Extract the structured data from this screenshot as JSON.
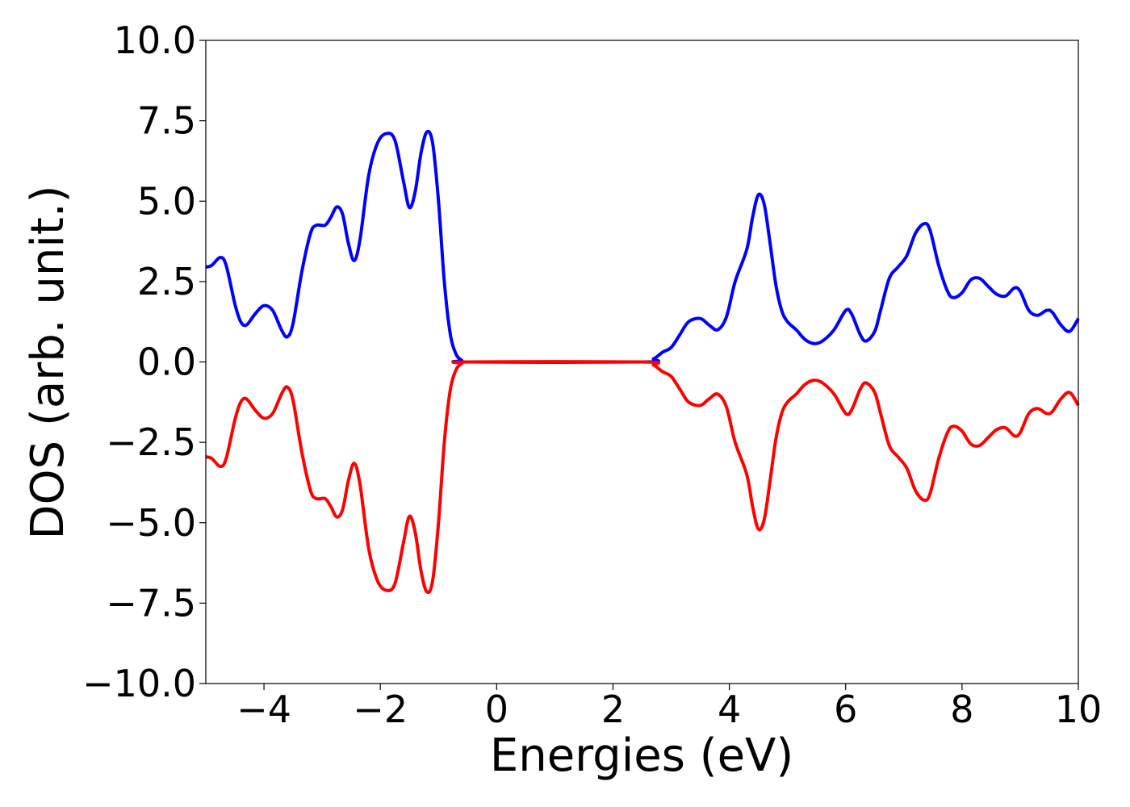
{
  "chart_data": {
    "type": "line",
    "xlabel": "Energies (eV)",
    "ylabel": "DOS (arb. unit.)",
    "xlim": [
      -5,
      10
    ],
    "ylim": [
      -10,
      10
    ],
    "grid": false,
    "x_ticks": [
      -4,
      -2,
      0,
      2,
      4,
      6,
      8,
      10
    ],
    "x_tick_labels": [
      "−4",
      "−2",
      "0",
      "2",
      "4",
      "6",
      "8",
      "10"
    ],
    "y_ticks": [
      10,
      7.5,
      5,
      2.5,
      0,
      -2.5,
      -5,
      -7.5,
      -10
    ],
    "y_tick_labels": [
      "10.0",
      "7.5",
      "5.0",
      "2.5",
      "0.0",
      "−2.5",
      "−5.0",
      "−7.5",
      "−10.0"
    ],
    "series": [
      {
        "color": "#0000ff",
        "points": [
          [
            -5.0,
            2.95
          ],
          [
            -4.9,
            3.0
          ],
          [
            -4.75,
            3.25
          ],
          [
            -4.65,
            3.0
          ],
          [
            -4.5,
            1.8
          ],
          [
            -4.4,
            1.25
          ],
          [
            -4.3,
            1.15
          ],
          [
            -4.15,
            1.5
          ],
          [
            -4.0,
            1.75
          ],
          [
            -3.85,
            1.6
          ],
          [
            -3.7,
            1.0
          ],
          [
            -3.6,
            0.78
          ],
          [
            -3.5,
            1.2
          ],
          [
            -3.35,
            2.8
          ],
          [
            -3.2,
            4.0
          ],
          [
            -3.1,
            4.25
          ],
          [
            -2.95,
            4.25
          ],
          [
            -2.85,
            4.5
          ],
          [
            -2.75,
            4.82
          ],
          [
            -2.65,
            4.6
          ],
          [
            -2.55,
            3.7
          ],
          [
            -2.45,
            3.15
          ],
          [
            -2.35,
            3.8
          ],
          [
            -2.2,
            5.8
          ],
          [
            -2.05,
            6.8
          ],
          [
            -1.9,
            7.1
          ],
          [
            -1.75,
            6.9
          ],
          [
            -1.6,
            5.6
          ],
          [
            -1.5,
            4.8
          ],
          [
            -1.4,
            5.3
          ],
          [
            -1.3,
            6.5
          ],
          [
            -1.2,
            7.15
          ],
          [
            -1.1,
            6.8
          ],
          [
            -1.0,
            5.0
          ],
          [
            -0.9,
            2.5
          ],
          [
            -0.8,
            0.9
          ],
          [
            -0.7,
            0.25
          ],
          [
            -0.6,
            0.05
          ],
          [
            -0.5,
            0.0
          ],
          [
            2.5,
            0.0
          ],
          [
            2.7,
            0.1
          ],
          [
            2.85,
            0.3
          ],
          [
            3.0,
            0.45
          ],
          [
            3.15,
            0.85
          ],
          [
            3.3,
            1.25
          ],
          [
            3.5,
            1.35
          ],
          [
            3.65,
            1.15
          ],
          [
            3.8,
            1.0
          ],
          [
            3.95,
            1.4
          ],
          [
            4.1,
            2.5
          ],
          [
            4.3,
            3.5
          ],
          [
            4.4,
            4.5
          ],
          [
            4.5,
            5.2
          ],
          [
            4.6,
            4.9
          ],
          [
            4.7,
            3.7
          ],
          [
            4.8,
            2.4
          ],
          [
            4.9,
            1.6
          ],
          [
            5.0,
            1.25
          ],
          [
            5.15,
            1.0
          ],
          [
            5.3,
            0.7
          ],
          [
            5.45,
            0.57
          ],
          [
            5.6,
            0.65
          ],
          [
            5.8,
            1.0
          ],
          [
            6.0,
            1.6
          ],
          [
            6.1,
            1.5
          ],
          [
            6.25,
            0.85
          ],
          [
            6.35,
            0.65
          ],
          [
            6.5,
            0.95
          ],
          [
            6.6,
            1.6
          ],
          [
            6.75,
            2.6
          ],
          [
            6.9,
            2.95
          ],
          [
            7.05,
            3.3
          ],
          [
            7.2,
            4.0
          ],
          [
            7.35,
            4.3
          ],
          [
            7.45,
            4.1
          ],
          [
            7.6,
            3.0
          ],
          [
            7.75,
            2.2
          ],
          [
            7.85,
            2.0
          ],
          [
            8.0,
            2.15
          ],
          [
            8.15,
            2.55
          ],
          [
            8.3,
            2.6
          ],
          [
            8.45,
            2.35
          ],
          [
            8.6,
            2.1
          ],
          [
            8.75,
            2.05
          ],
          [
            8.9,
            2.3
          ],
          [
            9.0,
            2.2
          ],
          [
            9.15,
            1.6
          ],
          [
            9.3,
            1.45
          ],
          [
            9.45,
            1.6
          ],
          [
            9.55,
            1.55
          ],
          [
            9.7,
            1.15
          ],
          [
            9.85,
            0.95
          ],
          [
            10.0,
            1.35
          ]
        ]
      },
      {
        "color": "#ff0000",
        "points": [
          [
            -5.0,
            -2.95
          ],
          [
            -4.9,
            -3.0
          ],
          [
            -4.75,
            -3.25
          ],
          [
            -4.65,
            -3.0
          ],
          [
            -4.5,
            -1.8
          ],
          [
            -4.4,
            -1.25
          ],
          [
            -4.3,
            -1.15
          ],
          [
            -4.15,
            -1.5
          ],
          [
            -4.0,
            -1.75
          ],
          [
            -3.85,
            -1.6
          ],
          [
            -3.7,
            -1.0
          ],
          [
            -3.6,
            -0.78
          ],
          [
            -3.5,
            -1.2
          ],
          [
            -3.35,
            -2.8
          ],
          [
            -3.2,
            -4.0
          ],
          [
            -3.1,
            -4.25
          ],
          [
            -2.95,
            -4.25
          ],
          [
            -2.85,
            -4.5
          ],
          [
            -2.75,
            -4.82
          ],
          [
            -2.65,
            -4.6
          ],
          [
            -2.55,
            -3.7
          ],
          [
            -2.45,
            -3.15
          ],
          [
            -2.35,
            -3.8
          ],
          [
            -2.2,
            -5.8
          ],
          [
            -2.05,
            -6.8
          ],
          [
            -1.9,
            -7.1
          ],
          [
            -1.75,
            -6.9
          ],
          [
            -1.6,
            -5.6
          ],
          [
            -1.5,
            -4.8
          ],
          [
            -1.4,
            -5.3
          ],
          [
            -1.3,
            -6.5
          ],
          [
            -1.2,
            -7.15
          ],
          [
            -1.1,
            -6.8
          ],
          [
            -1.0,
            -5.0
          ],
          [
            -0.9,
            -2.5
          ],
          [
            -0.8,
            -0.9
          ],
          [
            -0.7,
            -0.25
          ],
          [
            -0.6,
            -0.05
          ],
          [
            -0.5,
            0.0
          ],
          [
            2.5,
            0.0
          ],
          [
            2.7,
            -0.1
          ],
          [
            2.85,
            -0.3
          ],
          [
            3.0,
            -0.45
          ],
          [
            3.15,
            -0.85
          ],
          [
            3.3,
            -1.25
          ],
          [
            3.5,
            -1.35
          ],
          [
            3.65,
            -1.15
          ],
          [
            3.8,
            -1.0
          ],
          [
            3.95,
            -1.4
          ],
          [
            4.1,
            -2.5
          ],
          [
            4.3,
            -3.5
          ],
          [
            4.4,
            -4.5
          ],
          [
            4.5,
            -5.2
          ],
          [
            4.6,
            -4.9
          ],
          [
            4.7,
            -3.7
          ],
          [
            4.8,
            -2.4
          ],
          [
            4.9,
            -1.6
          ],
          [
            5.0,
            -1.25
          ],
          [
            5.15,
            -1.0
          ],
          [
            5.3,
            -0.7
          ],
          [
            5.45,
            -0.57
          ],
          [
            5.6,
            -0.65
          ],
          [
            5.8,
            -1.0
          ],
          [
            6.0,
            -1.6
          ],
          [
            6.1,
            -1.5
          ],
          [
            6.25,
            -0.85
          ],
          [
            6.35,
            -0.65
          ],
          [
            6.5,
            -0.95
          ],
          [
            6.6,
            -1.6
          ],
          [
            6.75,
            -2.6
          ],
          [
            6.9,
            -2.95
          ],
          [
            7.05,
            -3.3
          ],
          [
            7.2,
            -4.0
          ],
          [
            7.35,
            -4.3
          ],
          [
            7.45,
            -4.1
          ],
          [
            7.6,
            -3.0
          ],
          [
            7.75,
            -2.2
          ],
          [
            7.85,
            -2.0
          ],
          [
            8.0,
            -2.15
          ],
          [
            8.15,
            -2.55
          ],
          [
            8.3,
            -2.6
          ],
          [
            8.45,
            -2.35
          ],
          [
            8.6,
            -2.1
          ],
          [
            8.75,
            -2.05
          ],
          [
            8.9,
            -2.3
          ],
          [
            9.0,
            -2.2
          ],
          [
            9.15,
            -1.6
          ],
          [
            9.3,
            -1.45
          ],
          [
            9.45,
            -1.6
          ],
          [
            9.55,
            -1.55
          ],
          [
            9.7,
            -1.15
          ],
          [
            9.85,
            -0.95
          ],
          [
            10.0,
            -1.35
          ]
        ]
      }
    ]
  }
}
